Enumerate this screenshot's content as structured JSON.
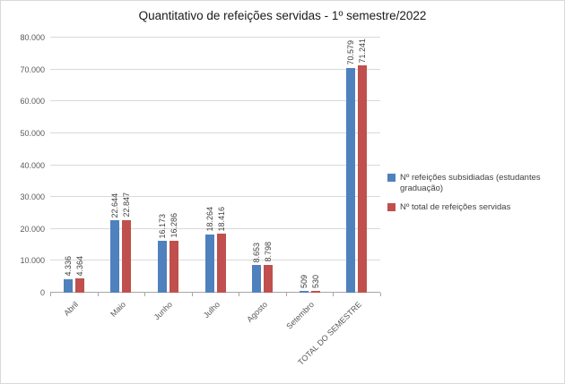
{
  "chart_data": {
    "type": "bar",
    "title": "Quantitativo de refeições servidas - 1º semestre/2022",
    "categories": [
      "Abril",
      "Maio",
      "Junho",
      "Julho",
      "Agosto",
      "Setembro",
      "TOTAL DO SEMESTRE"
    ],
    "series": [
      {
        "name": "Nº refeições subsidiadas (estudantes graduação)",
        "color": "#4F81BD",
        "values": [
          4336,
          22644,
          16173,
          18264,
          8653,
          509,
          70579
        ],
        "labels": [
          "4.336",
          "22.644",
          "16.173",
          "18.264",
          "8.653",
          "509",
          "70.579"
        ]
      },
      {
        "name": "Nº total de refeições servidas",
        "color": "#C0504D",
        "values": [
          4364,
          22847,
          16286,
          18416,
          8798,
          530,
          71241
        ],
        "labels": [
          "4.364",
          "22.847",
          "16.286",
          "18.416",
          "8.798",
          "530",
          "71.241"
        ]
      }
    ],
    "ylim": [
      0,
      80000
    ],
    "ytick_step": 10000,
    "ytick_labels": [
      "0",
      "10.000",
      "20.000",
      "30.000",
      "40.000",
      "50.000",
      "60.000",
      "70.000",
      "80.000"
    ],
    "grid": true,
    "legend_position": "right",
    "gridline_color": "#d9d9d9",
    "axis_color": "#a6a6a6"
  }
}
